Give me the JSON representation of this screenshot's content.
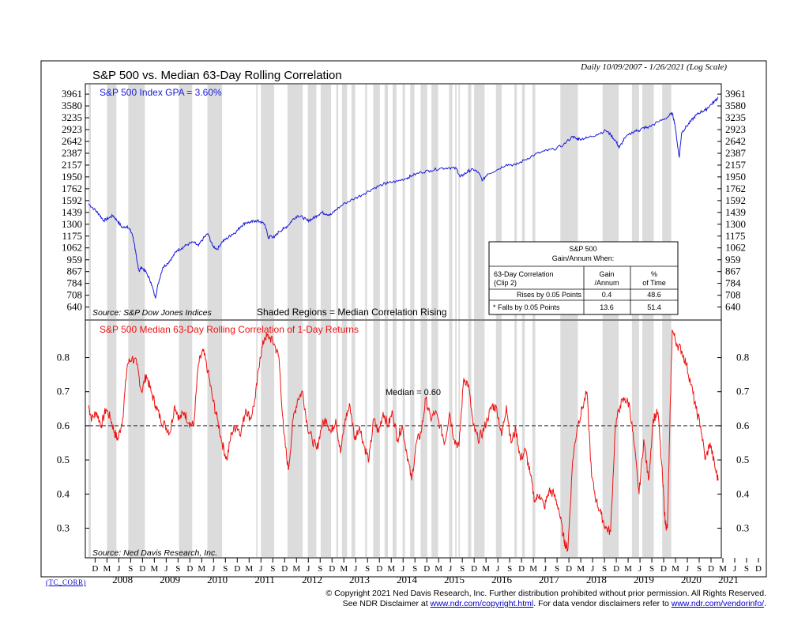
{
  "chart_data": {
    "type": "line",
    "title": "S&P 500 vs. Median 63-Day Rolling Correlation",
    "subtitle": "Daily 10/09/2007 - 1/26/2021 (Log Scale)",
    "shading_note": "Shaded Regions = Median Correlation Rising",
    "x_axis": {
      "month_ticks": [
        "D",
        "M",
        "J",
        "S",
        "D",
        "M",
        "J",
        "S",
        "D",
        "M",
        "J",
        "S",
        "D",
        "M",
        "J",
        "S",
        "D",
        "M",
        "J",
        "S",
        "D",
        "M",
        "J",
        "S",
        "D",
        "M",
        "J",
        "S",
        "D",
        "M",
        "J",
        "S",
        "D",
        "M",
        "J",
        "S",
        "D",
        "M",
        "J",
        "S",
        "D",
        "M",
        "J",
        "S",
        "D",
        "M",
        "J",
        "S",
        "D",
        "M",
        "J",
        "S",
        "D",
        "M",
        "J",
        "S",
        "D"
      ],
      "year_labels": [
        "2008",
        "2009",
        "2010",
        "2011",
        "2012",
        "2013",
        "2014",
        "2015",
        "2016",
        "2017",
        "2018",
        "2019",
        "2020",
        "2021"
      ]
    },
    "shaded_regions": [
      [
        2007.78,
        2007.83
      ],
      [
        2008.17,
        2008.37
      ],
      [
        2008.62,
        2008.97
      ],
      [
        2009.69,
        2009.97
      ],
      [
        2010.29,
        2010.6
      ],
      [
        2011.32,
        2011.35
      ],
      [
        2011.42,
        2011.7
      ],
      [
        2011.98,
        2012.3
      ],
      [
        2012.41,
        2012.59
      ],
      [
        2012.68,
        2012.9
      ],
      [
        2013.01,
        2013.05
      ],
      [
        2013.13,
        2013.24
      ],
      [
        2013.33,
        2013.41
      ],
      [
        2013.62,
        2013.66
      ],
      [
        2013.79,
        2013.93
      ],
      [
        2014.03,
        2014.1
      ],
      [
        2014.2,
        2014.28
      ],
      [
        2014.41,
        2014.46
      ],
      [
        2014.57,
        2014.66
      ],
      [
        2014.79,
        2014.93
      ],
      [
        2015.02,
        2015.16
      ],
      [
        2015.39,
        2015.46
      ],
      [
        2015.52,
        2015.55
      ],
      [
        2015.59,
        2015.62
      ],
      [
        2015.79,
        2015.86
      ],
      [
        2015.92,
        2016.14
      ],
      [
        2016.38,
        2016.5
      ],
      [
        2016.77,
        2016.82
      ],
      [
        2016.93,
        2016.99
      ],
      [
        2017.15,
        2017.21
      ],
      [
        2017.74,
        2018.11
      ],
      [
        2018.63,
        2018.97
      ],
      [
        2019.25,
        2019.4
      ],
      [
        2019.47,
        2019.71
      ],
      [
        2019.89,
        2020.08
      ]
    ],
    "panels": [
      {
        "series_name": "S&P 500 Index GPA = 3.60%",
        "source": "Source: S&P Dow Jones Indices",
        "scale": "log",
        "ylim": [
          617,
          4100
        ],
        "y_ticks": [
          640,
          708,
          784,
          867,
          959,
          1062,
          1175,
          1300,
          1439,
          1592,
          1762,
          1950,
          2157,
          2387,
          2642,
          2923,
          3235,
          3580,
          3961
        ],
        "color": "#1a1adb",
        "x": [
          2007.78,
          2007.9,
          2008.0,
          2008.1,
          2008.2,
          2008.3,
          2008.4,
          2008.5,
          2008.6,
          2008.7,
          2008.75,
          2008.8,
          2008.85,
          2008.9,
          2009.0,
          2009.1,
          2009.19,
          2009.25,
          2009.35,
          2009.45,
          2009.55,
          2009.65,
          2009.75,
          2009.85,
          2010.0,
          2010.1,
          2010.2,
          2010.3,
          2010.4,
          2010.5,
          2010.6,
          2010.7,
          2010.8,
          2010.9,
          2011.0,
          2011.1,
          2011.2,
          2011.3,
          2011.4,
          2011.5,
          2011.58,
          2011.62,
          2011.7,
          2011.8,
          2011.9,
          2012.0,
          2012.1,
          2012.2,
          2012.3,
          2012.4,
          2012.5,
          2012.6,
          2012.7,
          2012.8,
          2012.9,
          2013.0,
          2013.2,
          2013.4,
          2013.6,
          2013.8,
          2014.0,
          2014.1,
          2014.3,
          2014.5,
          2014.6,
          2014.8,
          2015.0,
          2015.2,
          2015.4,
          2015.55,
          2015.62,
          2015.7,
          2015.8,
          2015.9,
          2016.0,
          2016.1,
          2016.2,
          2016.4,
          2016.6,
          2016.8,
          2017.0,
          2017.2,
          2017.4,
          2017.6,
          2017.8,
          2018.0,
          2018.08,
          2018.15,
          2018.3,
          2018.5,
          2018.7,
          2018.8,
          2018.92,
          2018.98,
          2019.1,
          2019.3,
          2019.4,
          2019.5,
          2019.6,
          2019.8,
          2020.0,
          2020.1,
          2020.15,
          2020.22,
          2020.25,
          2020.3,
          2020.4,
          2020.5,
          2020.6,
          2020.7,
          2020.8,
          2020.9,
          2021.0,
          2021.07
        ],
        "values": [
          1550,
          1480,
          1420,
          1340,
          1370,
          1400,
          1330,
          1260,
          1280,
          1200,
          1100,
          950,
          870,
          900,
          860,
          790,
          690,
          780,
          900,
          930,
          980,
          1040,
          1060,
          1090,
          1115,
          1080,
          1150,
          1200,
          1080,
          1050,
          1120,
          1150,
          1190,
          1220,
          1280,
          1320,
          1320,
          1340,
          1330,
          1300,
          1150,
          1180,
          1160,
          1220,
          1250,
          1290,
          1360,
          1400,
          1380,
          1340,
          1360,
          1400,
          1440,
          1420,
          1410,
          1470,
          1560,
          1620,
          1690,
          1770,
          1830,
          1850,
          1880,
          1930,
          1970,
          2030,
          2060,
          2100,
          2110,
          2090,
          1950,
          1990,
          2050,
          2080,
          2030,
          1890,
          2000,
          2070,
          2170,
          2160,
          2260,
          2360,
          2430,
          2470,
          2560,
          2760,
          2700,
          2700,
          2720,
          2800,
          2900,
          2800,
          2630,
          2500,
          2720,
          2890,
          2900,
          2970,
          2980,
          3120,
          3250,
          3370,
          3100,
          2500,
          2300,
          2850,
          3000,
          3150,
          3300,
          3400,
          3450,
          3600,
          3730,
          3850
        ]
      },
      {
        "series_name": "S&P 500 Median 63-Day Rolling Correlation of 1-Day Returns",
        "source": "Source: Ned Davis Research, Inc.",
        "median_label": "Median = 0.60",
        "median_value": 0.6,
        "ylim": [
          0.22,
          0.88
        ],
        "y_ticks": [
          0.3,
          0.4,
          0.5,
          0.6,
          0.7,
          0.8
        ],
        "color": "#ee1111",
        "x": [
          2007.78,
          2007.85,
          2007.95,
          2008.05,
          2008.15,
          2008.25,
          2008.33,
          2008.4,
          2008.5,
          2008.6,
          2008.7,
          2008.8,
          2008.9,
          2009.0,
          2009.1,
          2009.2,
          2009.3,
          2009.4,
          2009.5,
          2009.6,
          2009.7,
          2009.8,
          2009.9,
          2010.0,
          2010.1,
          2010.2,
          2010.3,
          2010.4,
          2010.5,
          2010.6,
          2010.7,
          2010.8,
          2010.9,
          2011.0,
          2011.1,
          2011.2,
          2011.3,
          2011.4,
          2011.5,
          2011.6,
          2011.7,
          2011.8,
          2011.9,
          2012.0,
          2012.1,
          2012.2,
          2012.3,
          2012.4,
          2012.5,
          2012.6,
          2012.7,
          2012.8,
          2012.9,
          2013.0,
          2013.1,
          2013.2,
          2013.3,
          2013.4,
          2013.5,
          2013.6,
          2013.7,
          2013.8,
          2013.9,
          2014.0,
          2014.1,
          2014.2,
          2014.3,
          2014.4,
          2014.5,
          2014.6,
          2014.7,
          2014.8,
          2014.9,
          2015.0,
          2015.1,
          2015.2,
          2015.3,
          2015.4,
          2015.5,
          2015.6,
          2015.7,
          2015.8,
          2015.9,
          2016.0,
          2016.1,
          2016.2,
          2016.3,
          2016.4,
          2016.5,
          2016.6,
          2016.7,
          2016.8,
          2016.9,
          2017.0,
          2017.1,
          2017.2,
          2017.3,
          2017.4,
          2017.5,
          2017.6,
          2017.7,
          2017.8,
          2017.85,
          2017.9,
          2018.0,
          2018.1,
          2018.2,
          2018.3,
          2018.4,
          2018.5,
          2018.6,
          2018.7,
          2018.8,
          2018.9,
          2019.0,
          2019.1,
          2019.2,
          2019.3,
          2019.4,
          2019.5,
          2019.6,
          2019.7,
          2019.8,
          2019.9,
          2019.95,
          2020.0,
          2020.05,
          2020.1,
          2020.2,
          2020.3,
          2020.4,
          2020.5,
          2020.6,
          2020.7,
          2020.8,
          2020.9,
          2021.0,
          2021.07
        ],
        "values": [
          0.66,
          0.62,
          0.64,
          0.6,
          0.65,
          0.62,
          0.58,
          0.56,
          0.62,
          0.78,
          0.8,
          0.78,
          0.7,
          0.75,
          0.7,
          0.66,
          0.62,
          0.6,
          0.58,
          0.66,
          0.62,
          0.64,
          0.61,
          0.6,
          0.78,
          0.82,
          0.76,
          0.68,
          0.62,
          0.55,
          0.5,
          0.58,
          0.6,
          0.58,
          0.65,
          0.62,
          0.68,
          0.8,
          0.86,
          0.86,
          0.84,
          0.8,
          0.58,
          0.47,
          0.62,
          0.68,
          0.7,
          0.6,
          0.56,
          0.53,
          0.6,
          0.62,
          0.58,
          0.62,
          0.52,
          0.62,
          0.66,
          0.56,
          0.6,
          0.54,
          0.5,
          0.62,
          0.58,
          0.64,
          0.6,
          0.64,
          0.56,
          0.6,
          0.52,
          0.44,
          0.55,
          0.58,
          0.68,
          0.62,
          0.64,
          0.6,
          0.55,
          0.64,
          0.56,
          0.54,
          0.74,
          0.72,
          0.6,
          0.56,
          0.58,
          0.62,
          0.66,
          0.65,
          0.57,
          0.66,
          0.55,
          0.59,
          0.5,
          0.53,
          0.46,
          0.38,
          0.4,
          0.36,
          0.41,
          0.4,
          0.36,
          0.28,
          0.25,
          0.24,
          0.5,
          0.6,
          0.65,
          0.7,
          0.45,
          0.38,
          0.34,
          0.3,
          0.29,
          0.6,
          0.66,
          0.68,
          0.66,
          0.54,
          0.4,
          0.56,
          0.44,
          0.62,
          0.64,
          0.44,
          0.32,
          0.3,
          0.6,
          0.88,
          0.84,
          0.82,
          0.78,
          0.72,
          0.65,
          0.6,
          0.5,
          0.55,
          0.48,
          0.44
        ]
      }
    ]
  },
  "stats_table": {
    "title_line1": "S&P 500",
    "title_line2": "Gain/Annum When:",
    "col1_line1": "63-Day Correlation",
    "col1_line2": "(Clip 2)",
    "col2_line1": "Gain",
    "col2_line2": "/Annum",
    "col3_line1": "%",
    "col3_line2": "of Time",
    "row1": [
      "Rises by 0.05 Points",
      "0.4",
      "48.6"
    ],
    "row2": [
      "*  Falls by 0.05 Points",
      "13.6",
      "51.4"
    ]
  },
  "footer": {
    "code": "(TC_CORR)",
    "line1": "© Copyright 2021 Ned Davis Research, Inc.  Further distribution prohibited without prior permission.  All Rights Reserved.",
    "line2_pre": "See NDR Disclaimer at ",
    "line2_link1": "www.ndr.com/copyright.html",
    "line2_mid": ". For data vendor disclaimers refer to ",
    "line2_link2": "www.ndr.com/vendorinfo/",
    "line2_post": "."
  }
}
